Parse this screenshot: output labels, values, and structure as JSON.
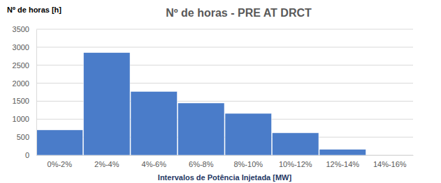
{
  "chart_data": {
    "type": "bar",
    "title": "Nº de horas - PRE AT DRCT",
    "y_label": "Nº de horas [h]",
    "x_label": "Intervalos de Potência Injetada [MW]",
    "categories": [
      "0%-2%",
      "2%-4%",
      "4%-6%",
      "6%-8%",
      "8%-10%",
      "10%-12%",
      "12%-14%",
      "14%-16%"
    ],
    "values": [
      700,
      2850,
      1770,
      1450,
      1160,
      620,
      160,
      0
    ],
    "color": "#4a7cc9",
    "ylim": [
      0,
      3500
    ],
    "yticks": [
      0,
      500,
      1000,
      1500,
      2000,
      2500,
      3000,
      3500
    ],
    "grid": true
  }
}
